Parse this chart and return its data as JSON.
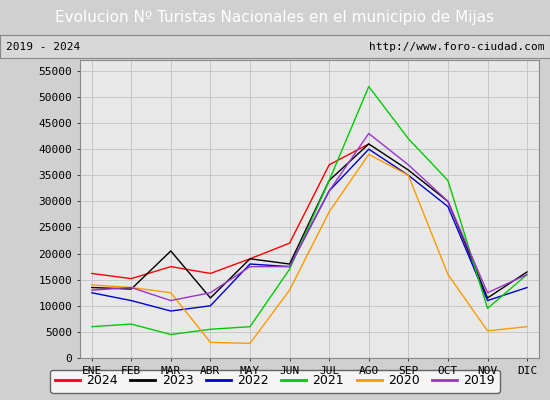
{
  "title": "Evolucion Nº Turistas Nacionales en el municipio de Mijas",
  "subtitle_left": "2019 - 2024",
  "subtitle_right": "http://www.foro-ciudad.com",
  "title_bg_color": "#4d7ebf",
  "title_text_color": "#ffffff",
  "months": [
    "ENE",
    "FEB",
    "MAR",
    "ABR",
    "MAY",
    "JUN",
    "JUL",
    "AGO",
    "SEP",
    "OCT",
    "NOV",
    "DIC"
  ],
  "ylim": [
    0,
    57000
  ],
  "yticks": [
    0,
    5000,
    10000,
    15000,
    20000,
    25000,
    30000,
    35000,
    40000,
    45000,
    50000,
    55000
  ],
  "series": {
    "2024": {
      "color": "#ff0000",
      "data": [
        16200,
        15200,
        17500,
        16200,
        19000,
        22000,
        37000,
        41000,
        null,
        null,
        null,
        null
      ]
    },
    "2023": {
      "color": "#000000",
      "data": [
        13500,
        13200,
        20500,
        11500,
        19000,
        18000,
        34000,
        41000,
        36000,
        30000,
        11500,
        16500
      ]
    },
    "2022": {
      "color": "#0000cc",
      "data": [
        12500,
        11000,
        9000,
        10000,
        18000,
        17500,
        32000,
        40000,
        35000,
        29000,
        11000,
        13500
      ]
    },
    "2021": {
      "color": "#00cc00",
      "data": [
        6000,
        6500,
        4500,
        5500,
        6000,
        17000,
        34000,
        52000,
        42000,
        34000,
        9500,
        16000
      ]
    },
    "2020": {
      "color": "#ff9900",
      "data": [
        14000,
        13500,
        12500,
        3000,
        2800,
        13000,
        28000,
        39000,
        35000,
        16000,
        5200,
        6000
      ]
    },
    "2019": {
      "color": "#9933cc",
      "data": [
        13000,
        13500,
        11000,
        12500,
        17500,
        17500,
        32000,
        43000,
        37000,
        30000,
        12500,
        16000
      ]
    }
  },
  "legend_order": [
    "2024",
    "2023",
    "2022",
    "2021",
    "2020",
    "2019"
  ],
  "bg_color": "#d0d0d0",
  "plot_bg_color": "#e8e8e8",
  "subtitle_bg_color": "#d8d8d8",
  "grid_color": "#bbbbbb",
  "title_fontsize": 11,
  "subtitle_fontsize": 8,
  "tick_fontsize": 8,
  "legend_fontsize": 9
}
